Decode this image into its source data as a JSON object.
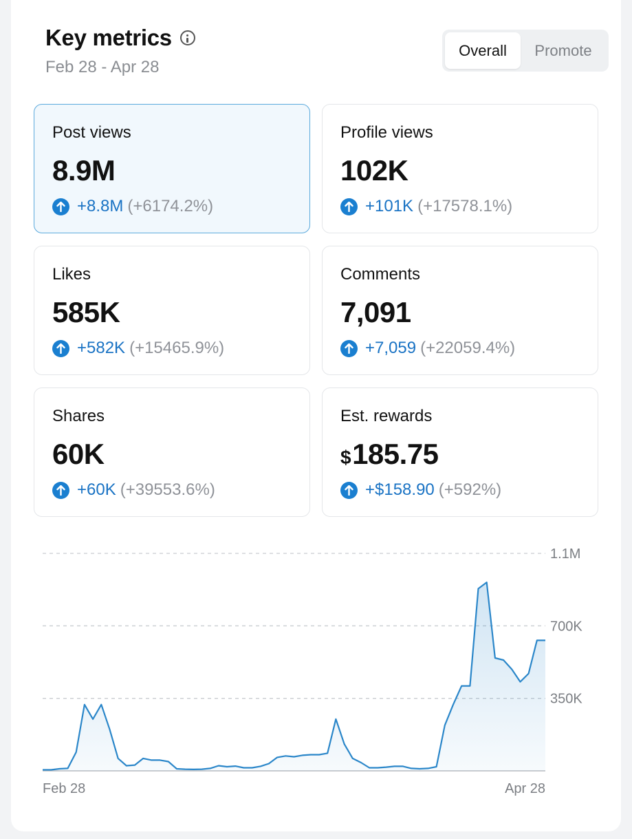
{
  "header": {
    "title": "Key metrics",
    "date_range": "Feb 28 - Apr 28"
  },
  "toggle": {
    "options": [
      "Overall",
      "Promote"
    ],
    "selected": "Overall"
  },
  "metrics": [
    {
      "label": "Post views",
      "value": "8.9M",
      "change": "+8.8M",
      "percent": "(+6174.2%)",
      "selected": true
    },
    {
      "label": "Profile views",
      "value": "102K",
      "change": "+101K",
      "percent": "(+17578.1%)",
      "selected": false
    },
    {
      "label": "Likes",
      "value": "585K",
      "change": "+582K",
      "percent": "(+15465.9%)",
      "selected": false
    },
    {
      "label": "Comments",
      "value": "7,091",
      "change": "+7,059",
      "percent": "(+22059.4%)",
      "selected": false
    },
    {
      "label": "Shares",
      "value": "60K",
      "change": "+60K",
      "percent": "(+39553.6%)",
      "selected": false
    },
    {
      "label": "Est. rewards",
      "currency": "$",
      "value": "185.75",
      "change": "+$158.90",
      "percent": "(+592%)",
      "selected": false
    }
  ],
  "colors": {
    "accent": "#1a7fd0",
    "selected_border": "#5aa9dc",
    "selected_bg": "#f1f8fd",
    "line": "#2a86c9"
  },
  "chart_data": {
    "type": "area",
    "series_metric": "Post views",
    "x_start_label": "Feb 28",
    "x_end_label": "Apr 28",
    "y_tick_labels": [
      "1.1M",
      "700K",
      "350K"
    ],
    "y_tick_values": [
      1050000,
      700000,
      350000
    ],
    "ylim": [
      0,
      1050000
    ],
    "grid": true,
    "x": [
      "Feb 28",
      "Feb 29",
      "Mar 1",
      "Mar 2",
      "Mar 3",
      "Mar 4",
      "Mar 5",
      "Mar 6",
      "Mar 7",
      "Mar 8",
      "Mar 9",
      "Mar 10",
      "Mar 11",
      "Mar 12",
      "Mar 13",
      "Mar 14",
      "Mar 15",
      "Mar 16",
      "Mar 17",
      "Mar 18",
      "Mar 19",
      "Mar 20",
      "Mar 21",
      "Mar 22",
      "Mar 23",
      "Mar 24",
      "Mar 25",
      "Mar 26",
      "Mar 27",
      "Mar 28",
      "Mar 29",
      "Mar 30",
      "Mar 31",
      "Apr 1",
      "Apr 2",
      "Apr 3",
      "Apr 4",
      "Apr 5",
      "Apr 6",
      "Apr 7",
      "Apr 8",
      "Apr 9",
      "Apr 10",
      "Apr 11",
      "Apr 12",
      "Apr 13",
      "Apr 14",
      "Apr 15",
      "Apr 16",
      "Apr 17",
      "Apr 18",
      "Apr 19",
      "Apr 20",
      "Apr 21",
      "Apr 22",
      "Apr 23",
      "Apr 24",
      "Apr 25",
      "Apr 26",
      "Apr 27",
      "Apr 28"
    ],
    "values": [
      5000,
      5000,
      10000,
      12000,
      90000,
      320000,
      250000,
      320000,
      200000,
      60000,
      25000,
      28000,
      60000,
      52000,
      52000,
      45000,
      10000,
      8000,
      7000,
      8000,
      12000,
      25000,
      20000,
      23000,
      15000,
      15000,
      22000,
      35000,
      65000,
      72000,
      68000,
      75000,
      78000,
      78000,
      85000,
      250000,
      130000,
      60000,
      40000,
      15000,
      15000,
      18000,
      22000,
      22000,
      12000,
      10000,
      12000,
      20000,
      220000,
      320000,
      410000,
      410000,
      880000,
      910000,
      545000,
      535000,
      490000,
      430000,
      470000,
      630000,
      630000
    ]
  }
}
